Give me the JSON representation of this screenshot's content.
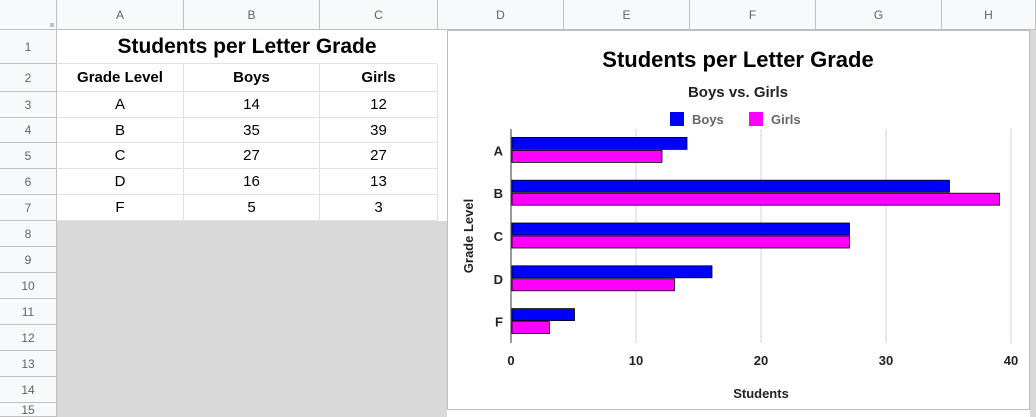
{
  "spreadsheet": {
    "columns": [
      "A",
      "B",
      "C",
      "D",
      "E",
      "F",
      "G",
      "H"
    ],
    "rows": [
      "1",
      "2",
      "3",
      "4",
      "5",
      "6",
      "7",
      "8",
      "9",
      "10",
      "11",
      "12",
      "13",
      "14",
      "15"
    ],
    "title": "Students per Letter Grade",
    "headers": [
      "Grade Level",
      "Boys",
      "Girls"
    ],
    "data": [
      [
        "A",
        "14",
        "12"
      ],
      [
        "B",
        "35",
        "39"
      ],
      [
        "C",
        "27",
        "27"
      ],
      [
        "D",
        "16",
        "13"
      ],
      [
        "F",
        "5",
        "3"
      ]
    ]
  },
  "chart_data": {
    "type": "bar",
    "orientation": "horizontal",
    "title": "Students per Letter Grade",
    "subtitle": "Boys vs. Girls",
    "xlabel": "Students",
    "ylabel": "Grade Level",
    "categories": [
      "A",
      "B",
      "C",
      "D",
      "F"
    ],
    "series": [
      {
        "name": "Boys",
        "values": [
          14,
          35,
          27,
          16,
          5
        ],
        "color": "#0000ff"
      },
      {
        "name": "Girls",
        "values": [
          12,
          39,
          27,
          13,
          3
        ],
        "color": "#ff00ff"
      }
    ],
    "xlim": [
      0,
      40
    ],
    "xticks": [
      "0",
      "10",
      "20",
      "30",
      "40"
    ],
    "grid": true,
    "legend": "top"
  }
}
